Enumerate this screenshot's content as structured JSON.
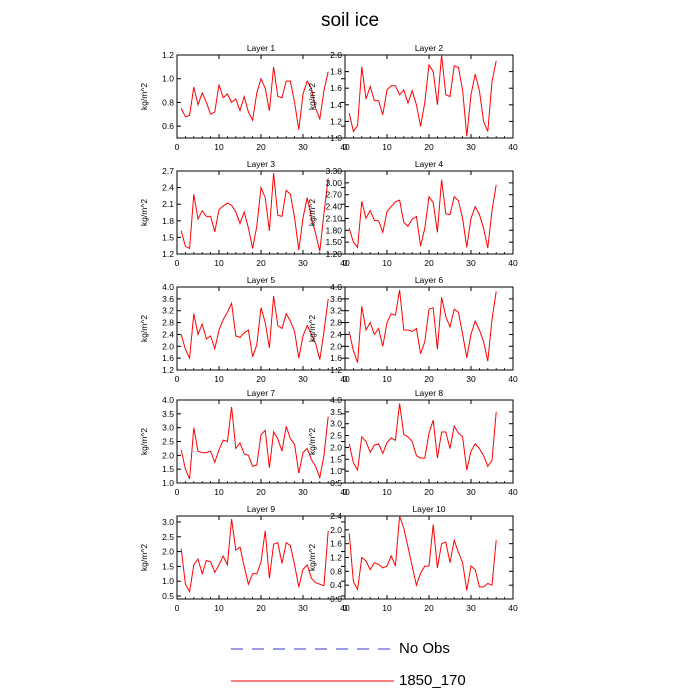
{
  "title": "soil ice",
  "colors": {
    "model_line": "#ff0000",
    "obs_line": "#3a3acc",
    "axis": "#000000"
  },
  "legend": {
    "entries": [
      {
        "label": "No Obs",
        "style": "dashed",
        "color": "#3a3acc"
      },
      {
        "label": "1850_170",
        "style": "solid",
        "color": "#ff0000"
      }
    ]
  },
  "chart_data": [
    {
      "type": "line",
      "title": "Layer 1",
      "ylabel": "kg/m^2",
      "xlim": [
        0,
        40
      ],
      "xticks": [
        0,
        10,
        20,
        30,
        40
      ],
      "ylim": [
        0.5,
        1.2
      ],
      "yticks": [
        "0.6",
        "0.8",
        "1.0",
        "1.2"
      ],
      "series": [
        {
          "x": [
            1,
            2,
            3,
            4,
            5,
            6,
            7,
            8,
            9,
            10,
            11,
            12,
            13,
            14,
            15,
            16,
            17,
            18,
            19,
            20,
            21,
            22,
            23,
            24,
            25,
            26,
            27,
            28,
            29,
            30,
            31,
            32,
            33,
            34,
            35,
            36
          ],
          "values": [
            0.75,
            0.68,
            0.69,
            0.93,
            0.78,
            0.88,
            0.8,
            0.7,
            0.72,
            0.95,
            0.84,
            0.87,
            0.8,
            0.83,
            0.73,
            0.85,
            0.72,
            0.65,
            0.88,
            1.0,
            0.92,
            0.73,
            1.1,
            0.85,
            0.84,
            0.98,
            0.98,
            0.8,
            0.57,
            0.87,
            0.98,
            0.92,
            0.75,
            0.66,
            0.9,
            1.06
          ]
        }
      ]
    },
    {
      "type": "line",
      "title": "Layer 2",
      "ylabel": "kg/m^2",
      "xlim": [
        0,
        40
      ],
      "xticks": [
        0,
        10,
        20,
        30,
        40
      ],
      "ylim": [
        1.0,
        2.0
      ],
      "yticks": [
        "1.0",
        "1.2",
        "1.4",
        "1.6",
        "1.8",
        "2.0"
      ],
      "series": [
        {
          "x": [
            1,
            2,
            3,
            4,
            5,
            6,
            7,
            8,
            9,
            10,
            11,
            12,
            13,
            14,
            15,
            16,
            17,
            18,
            19,
            20,
            21,
            22,
            23,
            24,
            25,
            26,
            27,
            28,
            29,
            30,
            31,
            32,
            33,
            34,
            35,
            36
          ],
          "values": [
            1.3,
            1.08,
            1.15,
            1.86,
            1.47,
            1.62,
            1.45,
            1.45,
            1.28,
            1.58,
            1.63,
            1.63,
            1.52,
            1.58,
            1.42,
            1.57,
            1.4,
            1.14,
            1.43,
            1.88,
            1.8,
            1.4,
            2.0,
            1.52,
            1.5,
            1.87,
            1.85,
            1.58,
            1.02,
            1.52,
            1.77,
            1.57,
            1.2,
            1.08,
            1.68,
            1.93
          ]
        }
      ]
    },
    {
      "type": "line",
      "title": "Layer 3",
      "ylabel": "kg/m^2",
      "xlim": [
        0,
        40
      ],
      "xticks": [
        0,
        10,
        20,
        30,
        40
      ],
      "ylim": [
        1.2,
        2.7
      ],
      "yticks": [
        "1.2",
        "1.5",
        "1.8",
        "2.1",
        "2.4",
        "2.7"
      ],
      "series": [
        {
          "x": [
            1,
            2,
            3,
            4,
            5,
            6,
            7,
            8,
            9,
            10,
            11,
            12,
            13,
            14,
            15,
            16,
            17,
            18,
            19,
            20,
            21,
            22,
            23,
            24,
            25,
            26,
            27,
            28,
            29,
            30,
            31,
            32,
            33,
            34,
            35,
            36
          ],
          "values": [
            1.62,
            1.34,
            1.3,
            2.28,
            1.83,
            1.98,
            1.88,
            1.88,
            1.6,
            2.0,
            2.07,
            2.12,
            2.08,
            1.96,
            1.75,
            1.96,
            1.67,
            1.3,
            1.7,
            2.4,
            2.22,
            1.62,
            2.66,
            1.9,
            1.88,
            2.35,
            2.28,
            1.85,
            1.27,
            1.85,
            2.22,
            1.85,
            1.57,
            1.25,
            1.94,
            2.57
          ]
        }
      ]
    },
    {
      "type": "line",
      "title": "Layer 4",
      "ylabel": "kg/m^2",
      "xlim": [
        0,
        40
      ],
      "xticks": [
        0,
        10,
        20,
        30,
        40
      ],
      "ylim": [
        1.2,
        3.3
      ],
      "yticks": [
        "1.20",
        "1.50",
        "1.80",
        "2.10",
        "2.40",
        "2.70",
        "3.00",
        "3.30"
      ],
      "series": [
        {
          "x": [
            1,
            2,
            3,
            4,
            5,
            6,
            7,
            8,
            9,
            10,
            11,
            12,
            13,
            14,
            15,
            16,
            17,
            18,
            19,
            20,
            21,
            22,
            23,
            24,
            25,
            26,
            27,
            28,
            29,
            30,
            31,
            32,
            33,
            34,
            35,
            36
          ],
          "values": [
            1.85,
            1.5,
            1.37,
            2.53,
            2.1,
            2.3,
            2.05,
            2.04,
            1.75,
            2.27,
            2.4,
            2.52,
            2.56,
            2.0,
            1.9,
            2.08,
            2.15,
            1.4,
            1.85,
            2.65,
            2.5,
            1.75,
            3.08,
            2.22,
            2.2,
            2.65,
            2.55,
            2.1,
            1.37,
            2.1,
            2.4,
            2.2,
            1.85,
            1.35,
            2.3,
            2.95
          ]
        }
      ]
    },
    {
      "type": "line",
      "title": "Layer 5",
      "ylabel": "kg/m^2",
      "xlim": [
        0,
        40
      ],
      "xticks": [
        0,
        10,
        20,
        30,
        40
      ],
      "ylim": [
        1.2,
        4.0
      ],
      "yticks": [
        "1.2",
        "1.6",
        "2.0",
        "2.4",
        "2.8",
        "3.2",
        "3.6",
        "4.0"
      ],
      "series": [
        {
          "x": [
            1,
            2,
            3,
            4,
            5,
            6,
            7,
            8,
            9,
            10,
            11,
            12,
            13,
            14,
            15,
            16,
            17,
            18,
            19,
            20,
            21,
            22,
            23,
            24,
            25,
            26,
            27,
            28,
            29,
            30,
            31,
            32,
            33,
            34,
            35,
            36
          ],
          "values": [
            2.4,
            1.9,
            1.6,
            3.1,
            2.4,
            2.75,
            2.25,
            2.35,
            1.92,
            2.55,
            2.9,
            3.15,
            3.45,
            2.35,
            2.3,
            2.45,
            2.55,
            1.65,
            2.05,
            3.3,
            2.8,
            1.95,
            3.7,
            2.7,
            2.6,
            3.1,
            2.85,
            2.5,
            1.6,
            2.35,
            2.7,
            2.4,
            2.1,
            1.55,
            2.5,
            3.6
          ]
        }
      ]
    },
    {
      "type": "line",
      "title": "Layer 6",
      "ylabel": "kg/m^2",
      "xlim": [
        0,
        40
      ],
      "xticks": [
        0,
        10,
        20,
        30,
        40
      ],
      "ylim": [
        1.2,
        4.0
      ],
      "yticks": [
        "1.2",
        "1.6",
        "2.0",
        "2.4",
        "2.8",
        "3.2",
        "3.6",
        "4.0"
      ],
      "series": [
        {
          "x": [
            1,
            2,
            3,
            4,
            5,
            6,
            7,
            8,
            9,
            10,
            11,
            12,
            13,
            14,
            15,
            16,
            17,
            18,
            19,
            20,
            21,
            22,
            23,
            24,
            25,
            26,
            27,
            28,
            29,
            30,
            31,
            32,
            33,
            34,
            35,
            36
          ],
          "values": [
            2.5,
            1.85,
            1.45,
            3.35,
            2.55,
            2.8,
            2.4,
            2.6,
            2.0,
            2.8,
            3.1,
            3.05,
            3.9,
            2.55,
            2.55,
            2.5,
            2.6,
            1.75,
            2.15,
            3.25,
            3.3,
            1.9,
            3.65,
            3.0,
            2.65,
            3.25,
            3.15,
            2.4,
            1.62,
            2.4,
            2.85,
            2.55,
            2.15,
            1.5,
            2.9,
            3.85
          ]
        }
      ]
    },
    {
      "type": "line",
      "title": "Layer 7",
      "ylabel": "kg/m^2",
      "xlim": [
        0,
        40
      ],
      "xticks": [
        0,
        10,
        20,
        30,
        40
      ],
      "ylim": [
        1.0,
        4.0
      ],
      "yticks": [
        "1.0",
        "1.5",
        "2.0",
        "2.5",
        "3.0",
        "3.5",
        "4.0"
      ],
      "series": [
        {
          "x": [
            1,
            2,
            3,
            4,
            5,
            6,
            7,
            8,
            9,
            10,
            11,
            12,
            13,
            14,
            15,
            16,
            17,
            18,
            19,
            20,
            21,
            22,
            23,
            24,
            25,
            26,
            27,
            28,
            29,
            30,
            31,
            32,
            33,
            34,
            35,
            36
          ],
          "values": [
            2.2,
            1.5,
            1.15,
            3.0,
            2.15,
            2.1,
            2.1,
            2.15,
            1.75,
            2.2,
            2.55,
            2.5,
            3.75,
            2.25,
            2.45,
            2.05,
            2.0,
            1.6,
            1.65,
            2.75,
            2.9,
            1.55,
            2.85,
            2.6,
            2.15,
            3.05,
            2.6,
            2.4,
            1.35,
            2.1,
            2.25,
            1.85,
            1.6,
            1.2,
            2.0,
            3.4
          ]
        }
      ]
    },
    {
      "type": "line",
      "title": "Layer 8",
      "ylabel": "kg/m^2",
      "xlim": [
        0,
        40
      ],
      "xticks": [
        0,
        10,
        20,
        30,
        40
      ],
      "ylim": [
        0.5,
        4.0
      ],
      "yticks": [
        "0.5",
        "1.0",
        "1.5",
        "2.0",
        "2.5",
        "3.0",
        "3.5",
        "4.0"
      ],
      "series": [
        {
          "x": [
            1,
            2,
            3,
            4,
            5,
            6,
            7,
            8,
            9,
            10,
            11,
            12,
            13,
            14,
            15,
            16,
            17,
            18,
            19,
            20,
            21,
            22,
            23,
            24,
            25,
            26,
            27,
            28,
            29,
            30,
            31,
            32,
            33,
            34,
            35,
            36
          ],
          "values": [
            2.15,
            1.35,
            1.05,
            2.45,
            2.25,
            1.8,
            2.1,
            2.15,
            1.75,
            2.2,
            2.4,
            2.3,
            3.85,
            2.55,
            2.45,
            2.25,
            1.65,
            1.55,
            1.55,
            2.6,
            3.15,
            1.55,
            2.65,
            2.65,
            1.95,
            2.9,
            2.6,
            2.45,
            1.05,
            1.85,
            2.15,
            1.95,
            1.65,
            1.2,
            1.45,
            3.5
          ]
        }
      ]
    },
    {
      "type": "line",
      "title": "Layer 9",
      "ylabel": "kg/m^2",
      "xlim": [
        0,
        40
      ],
      "xticks": [
        0,
        10,
        20,
        30,
        40
      ],
      "ylim": [
        0.4,
        3.2
      ],
      "yticks": [
        "0.5",
        "1.0",
        "1.5",
        "2.0",
        "2.5",
        "3.0"
      ],
      "series": [
        {
          "x": [
            1,
            2,
            3,
            4,
            5,
            6,
            7,
            8,
            9,
            10,
            11,
            12,
            13,
            14,
            15,
            16,
            17,
            18,
            19,
            20,
            21,
            22,
            23,
            24,
            25,
            26,
            27,
            28,
            29,
            30,
            31,
            32,
            33,
            34,
            35,
            36
          ],
          "values": [
            2.1,
            0.9,
            0.65,
            1.55,
            1.75,
            1.25,
            1.7,
            1.65,
            1.3,
            1.55,
            1.85,
            1.55,
            3.1,
            2.05,
            2.15,
            1.5,
            0.9,
            1.25,
            1.25,
            1.65,
            2.7,
            1.1,
            2.25,
            2.3,
            1.6,
            2.3,
            2.2,
            1.55,
            0.8,
            1.4,
            1.55,
            1.1,
            0.95,
            0.9,
            0.85,
            2.7
          ]
        }
      ]
    },
    {
      "type": "line",
      "title": "Layer 10",
      "ylabel": "kg/m^2",
      "xlim": [
        0,
        40
      ],
      "xticks": [
        0,
        10,
        20,
        30,
        40
      ],
      "ylim": [
        0.0,
        2.4
      ],
      "yticks": [
        "0.0",
        "0.4",
        "0.8",
        "1.2",
        "1.6",
        "2.0",
        "2.4"
      ],
      "series": [
        {
          "x": [
            1,
            2,
            3,
            4,
            5,
            6,
            7,
            8,
            9,
            10,
            11,
            12,
            13,
            14,
            15,
            16,
            17,
            18,
            19,
            20,
            21,
            22,
            23,
            24,
            25,
            26,
            27,
            28,
            29,
            30,
            31,
            32,
            33,
            34,
            35,
            36
          ],
          "values": [
            1.9,
            0.5,
            0.28,
            1.2,
            1.1,
            0.85,
            1.05,
            1.0,
            0.9,
            0.95,
            1.25,
            0.95,
            2.4,
            2.05,
            1.5,
            0.95,
            0.4,
            0.75,
            0.95,
            0.95,
            2.15,
            0.9,
            1.6,
            1.65,
            1.05,
            1.7,
            1.35,
            1.05,
            0.25,
            0.95,
            0.85,
            0.35,
            0.35,
            0.45,
            0.4,
            1.7
          ]
        }
      ]
    }
  ]
}
